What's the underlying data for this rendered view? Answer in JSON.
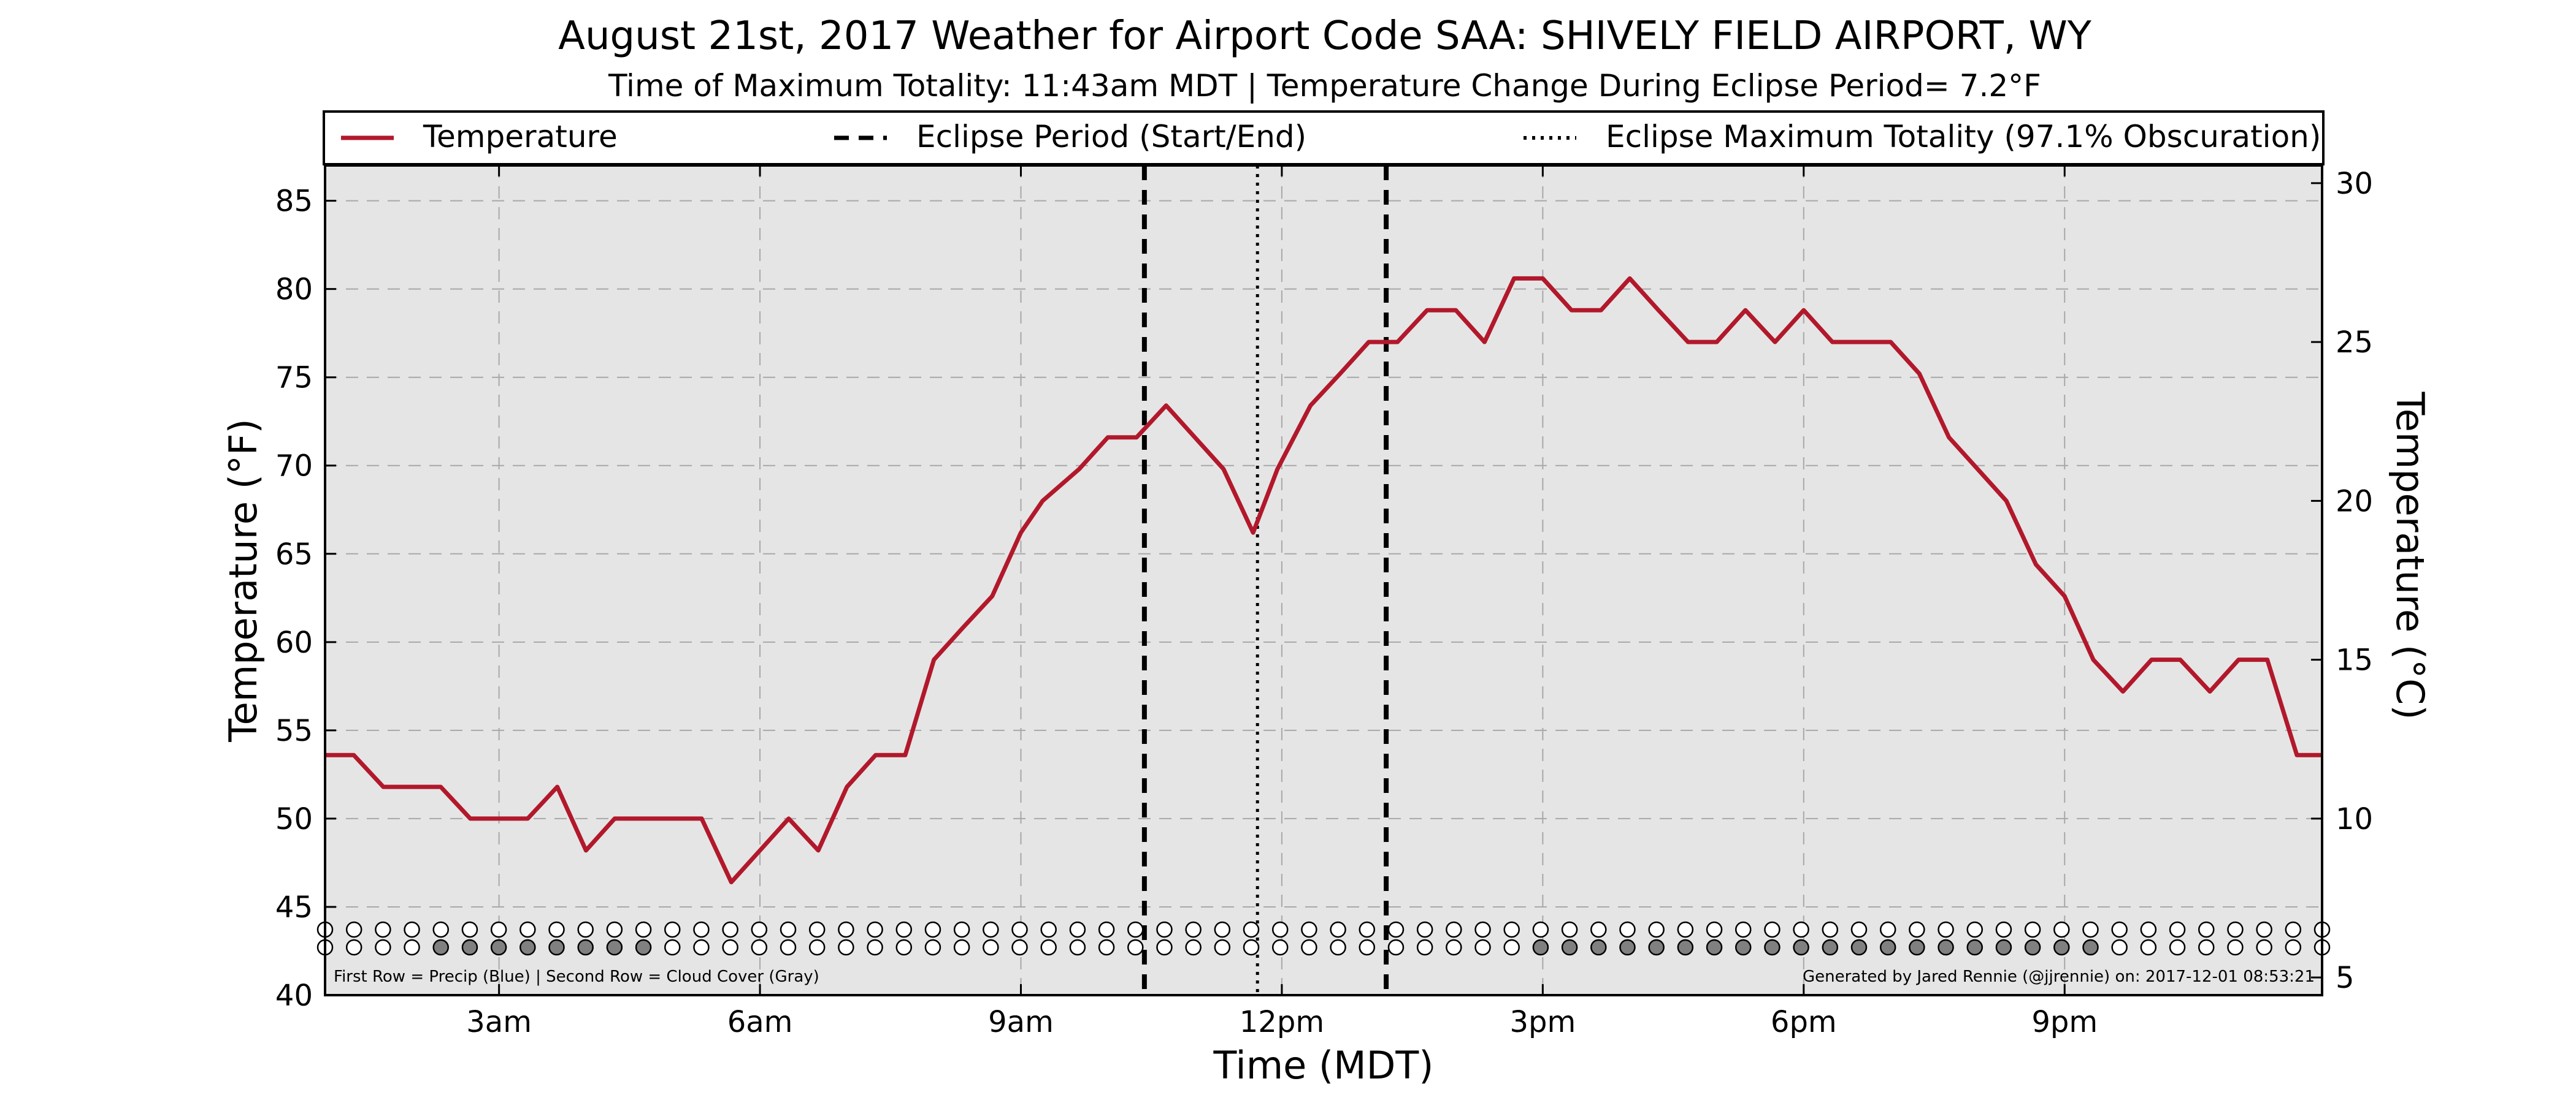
{
  "chart_data": {
    "type": "line",
    "title": "August 21st, 2017 Weather for Airport Code SAA: SHIVELY FIELD AIRPORT, WY",
    "subtitle": "Time of Maximum Totality: 11:43am MDT | Temperature Change During Eclipse Period= 7.2°F",
    "xlabel": "Time (MDT)",
    "ylabel": "Temperature (°F)",
    "ylabel_right": "Temperature (°C)",
    "xlim": [
      1.0,
      23.96
    ],
    "ylim": [
      40,
      87
    ],
    "ylim_right": [
      4.444,
      30.556
    ],
    "grid": true,
    "legend_position": "top",
    "x_ticks": [
      {
        "value": 3,
        "label": "3am"
      },
      {
        "value": 6,
        "label": "6am"
      },
      {
        "value": 9,
        "label": "9am"
      },
      {
        "value": 12,
        "label": "12pm"
      },
      {
        "value": 15,
        "label": "3pm"
      },
      {
        "value": 18,
        "label": "6pm"
      },
      {
        "value": 21,
        "label": "9pm"
      }
    ],
    "y_ticks": [
      40,
      45,
      50,
      55,
      60,
      65,
      70,
      75,
      80,
      85
    ],
    "y_ticks_right": [
      5,
      10,
      15,
      20,
      25,
      30
    ],
    "legend": [
      {
        "label": "Temperature",
        "style": "solid",
        "color": "#b2182b"
      },
      {
        "label": "Eclipse Period (Start/End)",
        "style": "dashed",
        "color": "#000000"
      },
      {
        "label": "Eclipse Maximum Totality (97.1% Obscuration)",
        "style": "dotted",
        "color": "#000000"
      }
    ],
    "series": [
      {
        "name": "Temperature",
        "color": "#b2182b",
        "x": [
          1.0,
          1.33,
          1.67,
          2.0,
          2.33,
          2.67,
          3.0,
          3.33,
          3.67,
          4.0,
          4.33,
          4.67,
          5.0,
          5.33,
          5.67,
          6.0,
          6.33,
          6.67,
          7.0,
          7.33,
          7.67,
          8.0,
          8.33,
          8.67,
          9.0,
          9.25,
          9.67,
          10.0,
          10.33,
          10.67,
          11.0,
          11.33,
          11.67,
          11.95,
          12.33,
          12.67,
          13.0,
          13.33,
          13.67,
          14.0,
          14.33,
          14.67,
          15.0,
          15.33,
          15.67,
          16.0,
          16.33,
          16.67,
          17.0,
          17.33,
          17.67,
          18.0,
          18.33,
          18.67,
          19.0,
          19.33,
          19.67,
          20.0,
          20.33,
          20.67,
          21.0,
          21.33,
          21.67,
          22.0,
          22.33,
          22.67,
          23.0,
          23.33,
          23.67,
          23.96
        ],
        "y": [
          53.6,
          53.6,
          51.8,
          51.8,
          51.8,
          50.0,
          50.0,
          50.0,
          51.8,
          48.2,
          50.0,
          50.0,
          50.0,
          50.0,
          46.4,
          48.2,
          50.0,
          48.2,
          51.8,
          53.6,
          53.6,
          59.0,
          60.8,
          62.6,
          66.2,
          68.0,
          69.8,
          71.6,
          71.6,
          73.4,
          71.6,
          69.8,
          66.2,
          69.8,
          73.4,
          75.2,
          77.0,
          77.0,
          78.8,
          78.8,
          77.0,
          80.6,
          80.6,
          78.8,
          78.8,
          80.6,
          78.8,
          77.0,
          77.0,
          78.8,
          77.0,
          78.8,
          77.0,
          77.0,
          77.0,
          75.2,
          71.6,
          69.8,
          68.0,
          64.4,
          62.6,
          59.0,
          57.2,
          59.0,
          59.0,
          57.2,
          59.0,
          59.0,
          53.6,
          53.6
        ]
      }
    ],
    "eclipse_start": 10.42,
    "eclipse_max": 11.72,
    "eclipse_end": 13.2,
    "precip_row": [
      0,
      0,
      0,
      0,
      0,
      0,
      0,
      0,
      0,
      0,
      0,
      0,
      0,
      0,
      0,
      0,
      0,
      0,
      0,
      0,
      0,
      0,
      0,
      0,
      0,
      0,
      0,
      0,
      0,
      0,
      0,
      0,
      0,
      0,
      0,
      0,
      0,
      0,
      0,
      0,
      0,
      0,
      0,
      0,
      0,
      0,
      0,
      0,
      0,
      0,
      0,
      0,
      0,
      0,
      0,
      0,
      0,
      0,
      0,
      0,
      0,
      0,
      0,
      0,
      0,
      0,
      0,
      0,
      0,
      0
    ],
    "cloud_row": [
      0,
      0,
      0,
      0,
      1,
      1,
      1,
      1,
      1,
      1,
      1,
      1,
      0,
      0,
      0,
      0,
      0,
      0,
      0,
      0,
      0,
      0,
      0,
      0,
      0,
      0,
      0,
      0,
      0,
      0,
      0,
      0,
      0,
      0,
      0,
      0,
      0,
      0,
      0,
      0,
      0,
      0,
      1,
      1,
      1,
      1,
      1,
      1,
      1,
      1,
      1,
      1,
      1,
      1,
      1,
      1,
      1,
      1,
      1,
      1,
      1,
      1,
      0,
      0,
      0,
      0,
      0,
      0,
      0,
      0
    ],
    "note_left": "First Row = Precip (Blue) | Second Row = Cloud Cover (Gray)",
    "note_right": "Generated by Jared Rennie (@jjrennie) on: 2017-12-01 08:53:21"
  },
  "colors": {
    "plot_background": "#e5e5e5",
    "temperature_line": "#b2182b",
    "cloud_fill": "#808080",
    "precip_fill": "#3366cc",
    "grid": "#a8a8a8"
  }
}
